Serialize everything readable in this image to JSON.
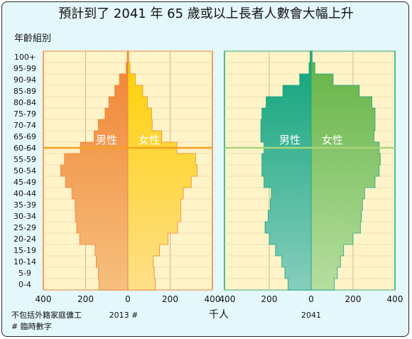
{
  "chart_data": [
    {
      "type": "bar",
      "subtype": "population-pyramid",
      "title": "預計到了 2041 年 65 歲或以上長者人數會大幅上升",
      "ylabel": "年齡組別",
      "xlabel": "千人",
      "panel_label": "2013 #",
      "categories": [
        "0-4",
        "5-9",
        "10-14",
        "15-19",
        "20-24",
        "25-29",
        "30-34",
        "35-39",
        "40-44",
        "45-49",
        "50-54",
        "55-59",
        "60-64",
        "65-69",
        "70-74",
        "75-79",
        "80-84",
        "85-89",
        "90-94",
        "95-99",
        "100+"
      ],
      "series": [
        {
          "name": "男性",
          "values": [
            137,
            140,
            150,
            155,
            228,
            242,
            248,
            250,
            265,
            295,
            318,
            300,
            225,
            160,
            140,
            108,
            90,
            62,
            40,
            8,
            3
          ]
        },
        {
          "name": "女性",
          "values": [
            130,
            125,
            120,
            150,
            190,
            235,
            250,
            250,
            262,
            300,
            328,
            320,
            232,
            160,
            115,
            112,
            92,
            70,
            35,
            10,
            4
          ]
        }
      ],
      "xticks": [
        "400",
        "200",
        "0",
        "200",
        "400"
      ],
      "xlim": [
        -400,
        400
      ],
      "reference_band": "60-64",
      "colors": {
        "male": "#f08232",
        "female": "#ffd700",
        "line": "#f5a020",
        "border": "#f08232"
      }
    },
    {
      "type": "bar",
      "subtype": "population-pyramid",
      "panel_label": "2041",
      "categories": [
        "0-4",
        "5-9",
        "10-14",
        "15-19",
        "20-24",
        "25-29",
        "30-34",
        "35-39",
        "40-44",
        "45-49",
        "50-54",
        "55-59",
        "60-64",
        "65-69",
        "70-74",
        "75-79",
        "80-84",
        "85-89",
        "90-94",
        "95-99",
        "100+"
      ],
      "series": [
        {
          "name": "男性",
          "values": [
            110,
            125,
            140,
            170,
            200,
            220,
            205,
            195,
            190,
            225,
            235,
            235,
            225,
            240,
            240,
            235,
            215,
            135,
            55,
            10,
            5
          ]
        },
        {
          "name": "女性",
          "values": [
            110,
            125,
            140,
            155,
            200,
            235,
            240,
            245,
            255,
            305,
            325,
            330,
            325,
            300,
            305,
            305,
            290,
            230,
            105,
            18,
            5
          ]
        }
      ],
      "xticks": [
        "400",
        "200",
        "0",
        "200",
        "400"
      ],
      "xlim": [
        -400,
        400
      ],
      "reference_band": "60-64",
      "colors": {
        "male": "#14a882",
        "female": "#74bd4e",
        "line": "#a6d67c",
        "border": "#14a882"
      }
    }
  ],
  "notes": [
    "不包括外籍家庭傭工",
    "# 臨時數字"
  ]
}
